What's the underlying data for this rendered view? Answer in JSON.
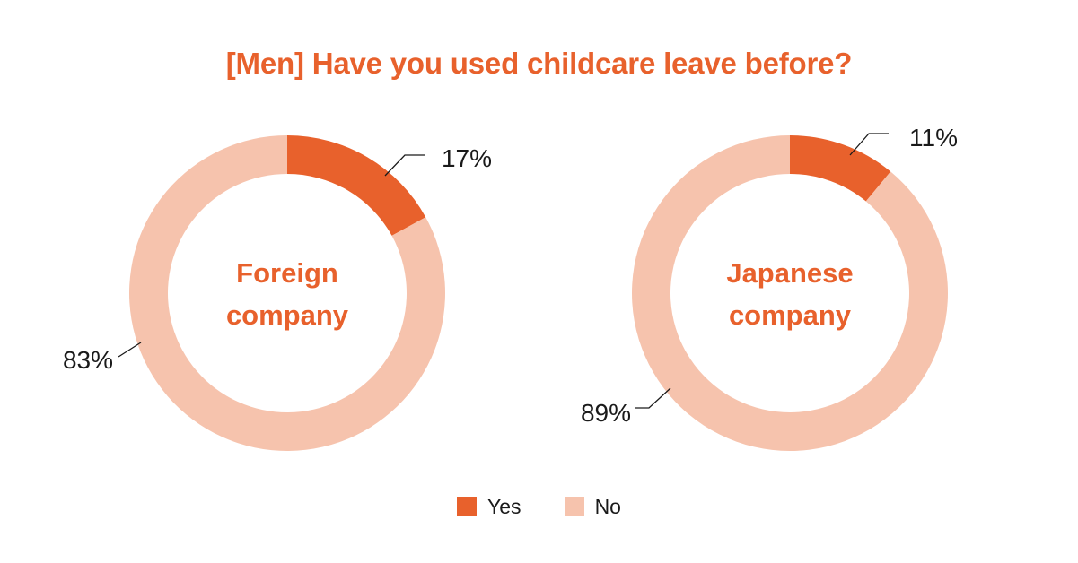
{
  "chart_data": {
    "type": "pie",
    "title": "[Men] Have you used childcare leave before?",
    "legend_position": "bottom-center",
    "colors": {
      "Yes": "#e8612c",
      "No": "#f6c3ad"
    },
    "legend": [
      {
        "label": "Yes",
        "color": "#e8612c"
      },
      {
        "label": "No",
        "color": "#f6c3ad"
      }
    ],
    "charts": [
      {
        "center_label": [
          "Foreign",
          "company"
        ],
        "slices": [
          {
            "category": "Yes",
            "value": 17,
            "label": "17%"
          },
          {
            "category": "No",
            "value": 83,
            "label": "83%"
          }
        ]
      },
      {
        "center_label": [
          "Japanese",
          "company"
        ],
        "slices": [
          {
            "category": "Yes",
            "value": 11,
            "label": "11%"
          },
          {
            "category": "No",
            "value": 89,
            "label": "89%"
          }
        ]
      }
    ]
  }
}
